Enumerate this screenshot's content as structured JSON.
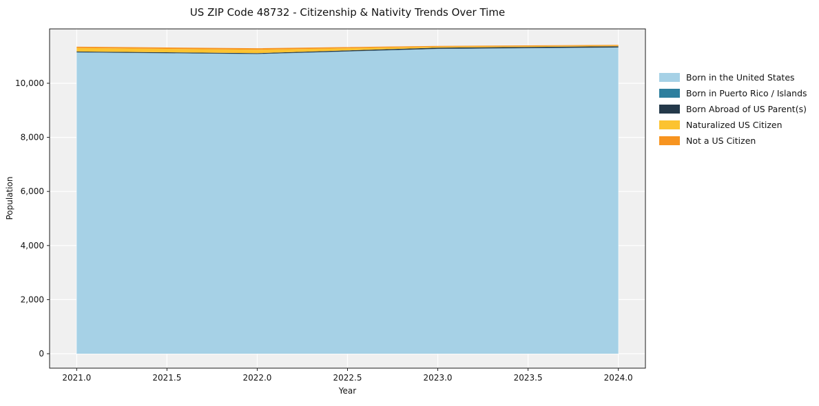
{
  "title": "US ZIP Code 48732 - Citizenship & Nativity Trends Over Time",
  "chart_data": {
    "type": "area",
    "stacked": true,
    "title": "US ZIP Code 48732 - Citizenship & Nativity Trends Over Time",
    "xlabel": "Year",
    "ylabel": "Population",
    "x": [
      2021,
      2022,
      2023,
      2024
    ],
    "series": [
      {
        "name": "Born in the United States",
        "color": "#a6d1e6",
        "values": [
          11140,
          11080,
          11270,
          11320
        ]
      },
      {
        "name": "Born in Puerto Rico / Islands",
        "color": "#2e7f9e",
        "values": [
          5,
          5,
          5,
          5
        ]
      },
      {
        "name": "Born Abroad of US Parent(s)",
        "color": "#24394a",
        "values": [
          30,
          30,
          40,
          45
        ]
      },
      {
        "name": "Naturalized US Citizen",
        "color": "#fcc330",
        "values": [
          130,
          125,
          35,
          25
        ]
      },
      {
        "name": "Not a US Citizen",
        "color": "#f79420",
        "values": [
          45,
          55,
          30,
          25
        ]
      }
    ],
    "x_ticks": [
      "2021.0",
      "2021.5",
      "2022.0",
      "2022.5",
      "2023.0",
      "2023.5",
      "2024.0"
    ],
    "x_tick_values": [
      2021.0,
      2021.5,
      2022.0,
      2022.5,
      2023.0,
      2023.5,
      2024.0
    ],
    "y_ticks": [
      "0",
      "2,000",
      "4,000",
      "6,000",
      "8,000",
      "10,000"
    ],
    "y_tick_values": [
      0,
      2000,
      4000,
      6000,
      8000,
      10000
    ],
    "xlim": [
      2020.85,
      2024.15
    ],
    "ylim": [
      -534,
      12010
    ],
    "grid": true,
    "legend_position": "right",
    "colors": {
      "plot_background": "#f0f0f0",
      "gridline": "#ffffff",
      "axes_frame": "#1a1a1a",
      "text": "#111111"
    }
  }
}
